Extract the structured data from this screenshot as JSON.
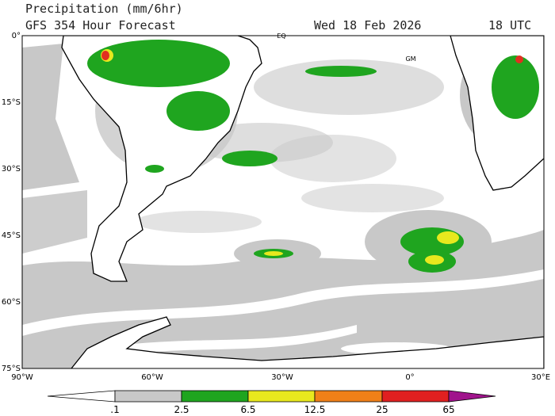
{
  "header": {
    "title": "Precipitation (mm/6hr)",
    "subtitle": "GFS 354 Hour Forecast",
    "date": "Wed 18 Feb 2026",
    "time": "18 UTC"
  },
  "map": {
    "latitude_labels": [
      "0°",
      "15°S",
      "30°S",
      "45°S",
      "60°S",
      "75°S"
    ],
    "longitude_labels": [
      "90°W",
      "60°W",
      "30°W",
      "0°",
      "30°E"
    ],
    "labels": [
      "EQ",
      "GM"
    ]
  },
  "colorbar": {
    "labels": [
      ".1",
      "2.5",
      "6.5",
      "12.5",
      "25",
      "65"
    ]
  }
}
